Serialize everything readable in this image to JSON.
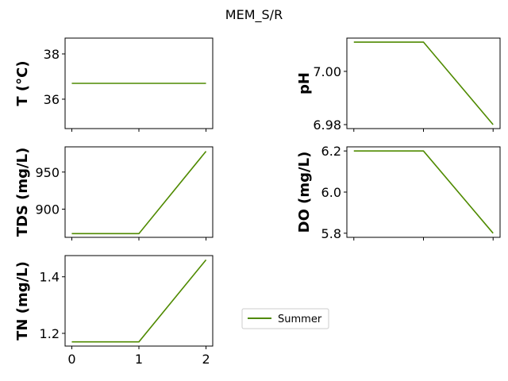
{
  "title": "MEM_S/R",
  "series_color": "#4f8a00",
  "legend": {
    "label": "Summer",
    "placement": "lower-center"
  },
  "chart_data": [
    {
      "type": "line",
      "ylabel": "T  (°C)",
      "x": [
        0,
        1,
        2
      ],
      "series": [
        {
          "name": "Summer",
          "values": [
            36.7,
            36.7,
            36.7
          ]
        }
      ],
      "xlim": [
        -0.1,
        2.1
      ],
      "ylim": [
        34.7,
        38.7
      ],
      "yticks": [
        36,
        38
      ],
      "xticks": [
        0,
        1,
        2
      ],
      "show_xtick_labels": false
    },
    {
      "type": "line",
      "ylabel": "pH",
      "x": [
        0,
        1,
        2
      ],
      "series": [
        {
          "name": "Summer",
          "values": [
            7.011,
            7.011,
            6.98
          ]
        }
      ],
      "xlim": [
        -0.1,
        2.1
      ],
      "ylim": [
        6.9785,
        7.0125
      ],
      "yticks": [
        6.98,
        7.0
      ],
      "ytick_labels": [
        "6.98",
        "7.00"
      ],
      "xticks": [
        0,
        1,
        2
      ],
      "show_xtick_labels": false
    },
    {
      "type": "line",
      "ylabel": "TDS (mg/L)",
      "x": [
        0,
        1,
        2
      ],
      "series": [
        {
          "name": "Summer",
          "values": [
            867,
            867,
            978
          ]
        }
      ],
      "xlim": [
        -0.1,
        2.1
      ],
      "ylim": [
        862,
        984
      ],
      "yticks": [
        900,
        950
      ],
      "xticks": [
        0,
        1,
        2
      ],
      "show_xtick_labels": false
    },
    {
      "type": "line",
      "ylabel": "DO (mg/L)",
      "x": [
        0,
        1,
        2
      ],
      "series": [
        {
          "name": "Summer",
          "values": [
            6.2,
            6.2,
            5.8
          ]
        }
      ],
      "xlim": [
        -0.1,
        2.1
      ],
      "ylim": [
        5.78,
        6.22
      ],
      "yticks": [
        5.8,
        6.0,
        6.2
      ],
      "ytick_labels": [
        "5.8",
        "6.0",
        "6.2"
      ],
      "xticks": [
        0,
        1,
        2
      ],
      "show_xtick_labels": false
    },
    {
      "type": "line",
      "ylabel": "TN (mg/L)",
      "x": [
        0,
        1,
        2
      ],
      "series": [
        {
          "name": "Summer",
          "values": [
            1.17,
            1.17,
            1.46
          ]
        }
      ],
      "xlim": [
        -0.1,
        2.1
      ],
      "ylim": [
        1.155,
        1.475
      ],
      "yticks": [
        1.2,
        1.4
      ],
      "ytick_labels": [
        "1.2",
        "1.4"
      ],
      "xticks": [
        0,
        1,
        2
      ],
      "show_xtick_labels": true
    }
  ]
}
